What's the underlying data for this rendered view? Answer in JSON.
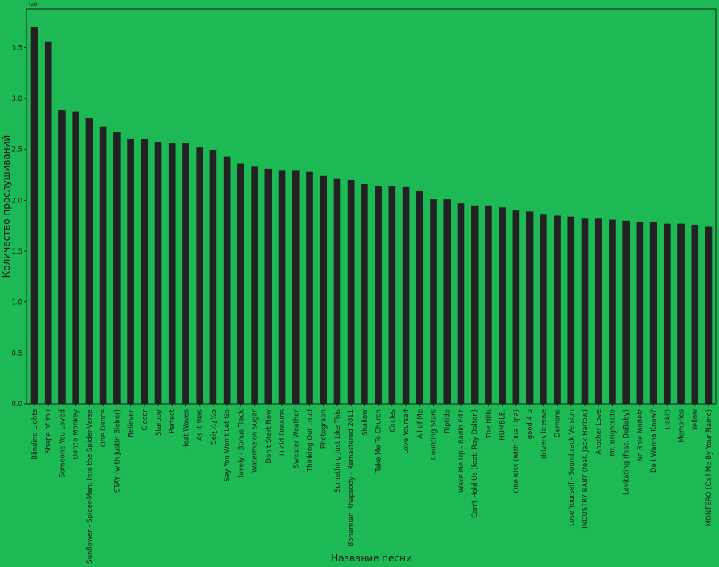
{
  "chart_data": {
    "type": "bar",
    "title": "",
    "xlabel": "Название песни",
    "ylabel": "Количество прослушиваний",
    "y_scale_label": "1e9",
    "ylim": [
      0,
      3.88
    ],
    "yticks": [
      "0.0",
      "0.5",
      "1.0",
      "1.5",
      "2.0",
      "2.5",
      "3.0",
      "3.5"
    ],
    "grid": false,
    "colors": {
      "background": "#1db954",
      "bar": "#222222",
      "frame": "#1a1a1a",
      "text": "#1a1a1a"
    },
    "categories": [
      "Blinding Lights",
      "Shape of You",
      "Someone You Loved",
      "Dance Monkey",
      "Sunflower - Spider-Man: Into the Spider-Verse",
      "One Dance",
      "STAY (with Justin Bieber)",
      "Believer",
      "Closer",
      "Starboy",
      "Perfect",
      "Heat Waves",
      "As It Was",
      "Sei¿½¿½o",
      "Say You Won't Let Go",
      "lovely - Bonus Track",
      "Watermelon Sugar",
      "Don't Start Now",
      "Lucid Dreams",
      "Sweater Weather",
      "Thinking Out Loud",
      "Photograph",
      "Something Just Like This",
      "Bohemian Rhapsody - Remastered 2011",
      "Shallow",
      "Take Me To Church",
      "Circles",
      "Love Yourself",
      "All of Me",
      "Counting Stars",
      "Riptide",
      "Wake Me Up - Radio Edit",
      "Can't Hold Us (feat. Ray Dalton)",
      "The Hills",
      "HUMBLE.",
      "One Kiss (with Dua Lipa)",
      "good 4 u",
      "drivers license",
      "Demons",
      "Lose Yourself - Soundtrack Version",
      "INDUSTRY BABY (feat. Jack Harlow)",
      "Another Love",
      "Mr. Brightside",
      "Levitating (feat. DaBaby)",
      "No Role Modelz",
      "Do I Wanna Know?",
      "Dakiti",
      "Memories",
      "Yellow",
      "MONTERO (Call Me By Your Name)"
    ],
    "values": [
      3.7,
      3.56,
      2.89,
      2.87,
      2.81,
      2.72,
      2.67,
      2.6,
      2.6,
      2.57,
      2.56,
      2.56,
      2.52,
      2.49,
      2.43,
      2.36,
      2.33,
      2.31,
      2.29,
      2.29,
      2.28,
      2.24,
      2.21,
      2.2,
      2.16,
      2.14,
      2.14,
      2.13,
      2.09,
      2.01,
      2.01,
      1.97,
      1.95,
      1.95,
      1.93,
      1.9,
      1.89,
      1.86,
      1.85,
      1.84,
      1.82,
      1.82,
      1.81,
      1.8,
      1.79,
      1.79,
      1.77,
      1.77,
      1.76,
      1.74
    ]
  }
}
